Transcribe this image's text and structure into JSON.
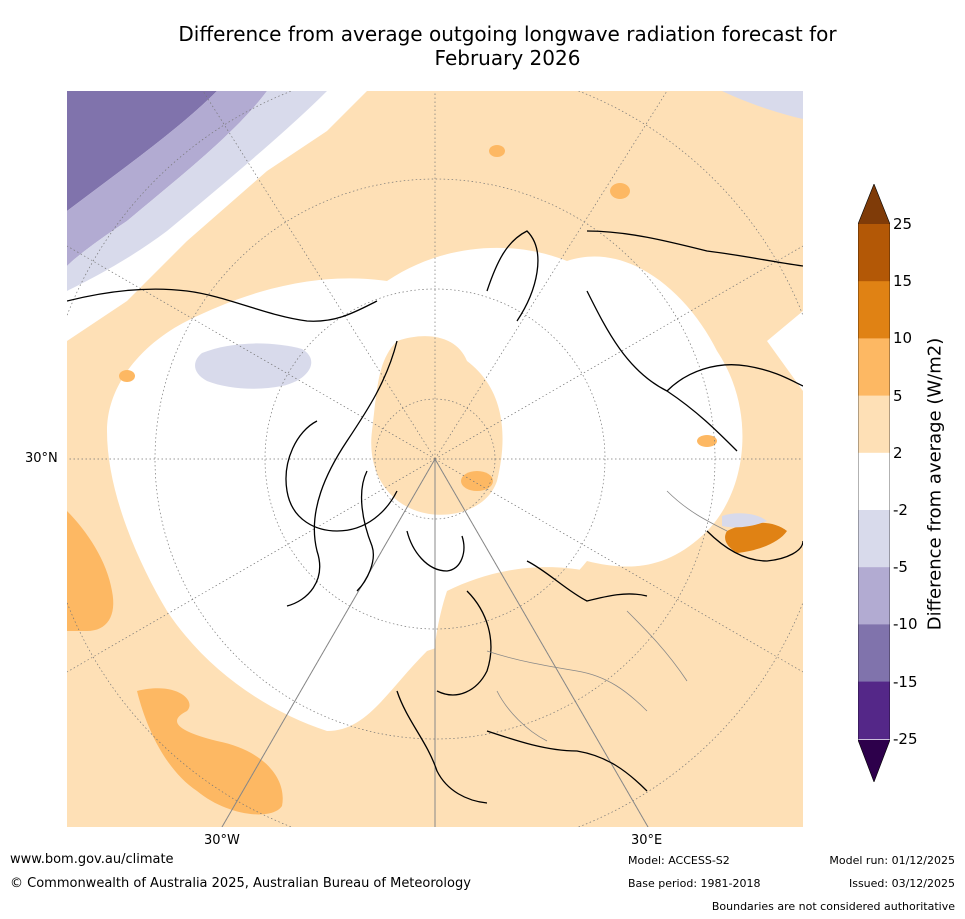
{
  "title": {
    "line1": "Difference from average outgoing longwave radiation forecast for",
    "line2": "February 2026"
  },
  "map": {
    "projection": "north polar stereographic",
    "graticule_labels": {
      "lat_left": "30°N",
      "lon_left": "30°W",
      "lon_right": "30°E"
    }
  },
  "legend": {
    "title": "Difference from average (W/m2)",
    "ticks": [
      "25",
      "15",
      "10",
      "5",
      "2",
      "-2",
      "-5",
      "-10",
      "-15",
      "-25"
    ],
    "bins": [
      {
        "range": "> 25",
        "color": "#7f3b08"
      },
      {
        "range": "15 to 25",
        "color": "#b35806"
      },
      {
        "range": "10 to 15",
        "color": "#e08214"
      },
      {
        "range": "5 to 10",
        "color": "#fdb863"
      },
      {
        "range": "2 to 5",
        "color": "#fee0b6"
      },
      {
        "range": "-2 to 2",
        "color": "#ffffff"
      },
      {
        "range": "-5 to -2",
        "color": "#d8daeb"
      },
      {
        "range": "-10 to -5",
        "color": "#b2abd2"
      },
      {
        "range": "-15 to -10",
        "color": "#8073ac"
      },
      {
        "range": "-25 to -15",
        "color": "#542788"
      },
      {
        "range": "< -25",
        "color": "#2d004b"
      }
    ]
  },
  "footer": {
    "url": "www.bom.gov.au/climate",
    "copyright": "© Commonwealth of Australia 2025, Australian Bureau of Meteorology",
    "model": "Model: ACCESS-S2",
    "base_period": "Base period: 1981-2018",
    "model_run": "Model run: 01/12/2025",
    "issued": "Issued: 03/12/2025",
    "disclaimer": "Boundaries are not considered authoritative"
  }
}
